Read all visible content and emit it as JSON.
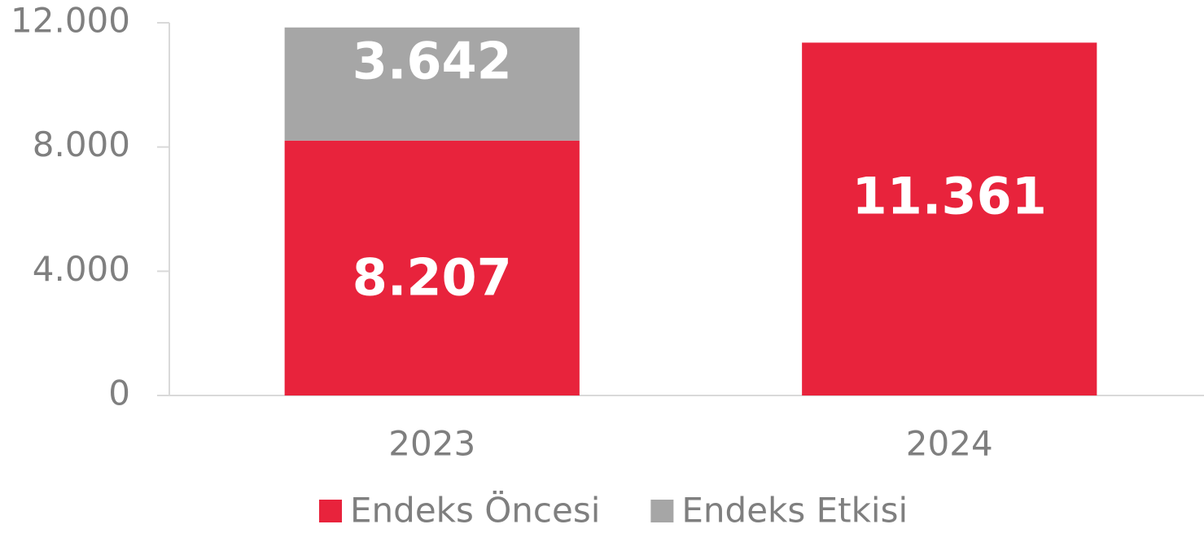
{
  "chart_data": {
    "type": "stacked_bar",
    "categories": [
      "2023",
      "2024"
    ],
    "series": [
      {
        "name": "Endeks Öncesi",
        "color": "#e8233c",
        "values": [
          8207,
          11361
        ],
        "value_labels": [
          "8.207",
          "11.361"
        ]
      },
      {
        "name": "Endeks Etkisi",
        "color": "#a6a6a6",
        "values": [
          3642,
          null
        ],
        "value_labels": [
          "3.642",
          null
        ]
      }
    ],
    "ylim": [
      0,
      12000
    ],
    "yticks": [
      {
        "value": 0,
        "label": "0"
      },
      {
        "value": 4000,
        "label": "4.000"
      },
      {
        "value": 8000,
        "label": "8.000"
      },
      {
        "value": 12000,
        "label": "12.000"
      }
    ],
    "grid": false,
    "legend": "bottom"
  }
}
